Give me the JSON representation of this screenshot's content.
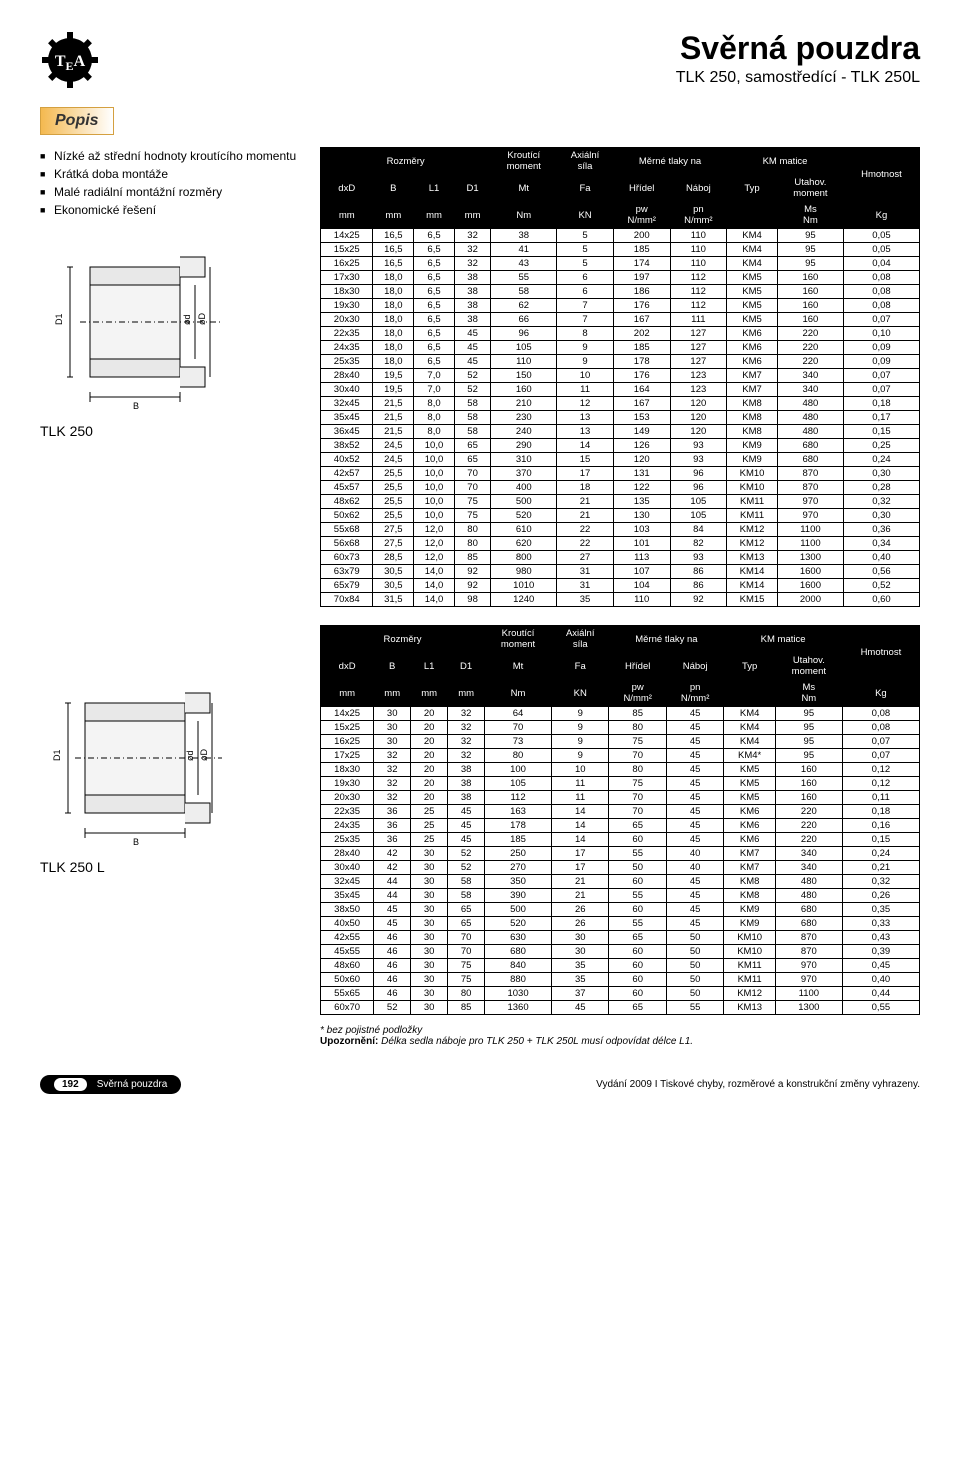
{
  "header": {
    "title": "Svěrná pouzdra",
    "subtitle": "TLK 250, samostředící - TLK 250L"
  },
  "section_title": "Popis",
  "features": [
    "Nízké až střední hodnoty kroutícího momentu",
    "Krátká doba montáže",
    "Malé radiální montážní rozměry",
    "Ekonomické řešení"
  ],
  "labels": {
    "tlk250": "TLK 250",
    "tlk250l": "TLK 250 L"
  },
  "table_headers": {
    "rozmery": "Rozměry",
    "kroutici": "Kroutící moment",
    "axialni": "Axiální síla",
    "merne": "Měrné tlaky na",
    "hridel": "Hřídel",
    "naboj": "Náboj",
    "km": "KM matice",
    "typ": "Typ",
    "utahov": "Utahov. moment",
    "hmotnost": "Hmotnost",
    "dxD": "dxD",
    "B": "B",
    "L1": "L1",
    "D1": "D1",
    "Mt": "Mt",
    "Fa": "Fa",
    "pw": "pw",
    "pn": "pn",
    "Ms": "Ms",
    "mm": "mm",
    "Nm": "Nm",
    "KN": "KN",
    "Nmm2": "N/mm²",
    "Kg": "Kg"
  },
  "table1": [
    [
      "14x25",
      "16,5",
      "6,5",
      "32",
      "38",
      "5",
      "200",
      "110",
      "KM4",
      "95",
      "0,05"
    ],
    [
      "15x25",
      "16,5",
      "6,5",
      "32",
      "41",
      "5",
      "185",
      "110",
      "KM4",
      "95",
      "0,05"
    ],
    [
      "16x25",
      "16,5",
      "6,5",
      "32",
      "43",
      "5",
      "174",
      "110",
      "KM4",
      "95",
      "0,04"
    ],
    [
      "17x30",
      "18,0",
      "6,5",
      "38",
      "55",
      "6",
      "197",
      "112",
      "KM5",
      "160",
      "0,08"
    ],
    [
      "18x30",
      "18,0",
      "6,5",
      "38",
      "58",
      "6",
      "186",
      "112",
      "KM5",
      "160",
      "0,08"
    ],
    [
      "19x30",
      "18,0",
      "6,5",
      "38",
      "62",
      "7",
      "176",
      "112",
      "KM5",
      "160",
      "0,08"
    ],
    [
      "20x30",
      "18,0",
      "6,5",
      "38",
      "66",
      "7",
      "167",
      "111",
      "KM5",
      "160",
      "0,07"
    ],
    [
      "22x35",
      "18,0",
      "6,5",
      "45",
      "96",
      "8",
      "202",
      "127",
      "KM6",
      "220",
      "0,10"
    ],
    [
      "24x35",
      "18,0",
      "6,5",
      "45",
      "105",
      "9",
      "185",
      "127",
      "KM6",
      "220",
      "0,09"
    ],
    [
      "25x35",
      "18,0",
      "6,5",
      "45",
      "110",
      "9",
      "178",
      "127",
      "KM6",
      "220",
      "0,09"
    ],
    [
      "28x40",
      "19,5",
      "7,0",
      "52",
      "150",
      "10",
      "176",
      "123",
      "KM7",
      "340",
      "0,07"
    ],
    [
      "30x40",
      "19,5",
      "7,0",
      "52",
      "160",
      "11",
      "164",
      "123",
      "KM7",
      "340",
      "0,07"
    ],
    [
      "32x45",
      "21,5",
      "8,0",
      "58",
      "210",
      "12",
      "167",
      "120",
      "KM8",
      "480",
      "0,18"
    ],
    [
      "35x45",
      "21,5",
      "8,0",
      "58",
      "230",
      "13",
      "153",
      "120",
      "KM8",
      "480",
      "0,17"
    ],
    [
      "36x45",
      "21,5",
      "8,0",
      "58",
      "240",
      "13",
      "149",
      "120",
      "KM8",
      "480",
      "0,15"
    ],
    [
      "38x52",
      "24,5",
      "10,0",
      "65",
      "290",
      "14",
      "126",
      "93",
      "KM9",
      "680",
      "0,25"
    ],
    [
      "40x52",
      "24,5",
      "10,0",
      "65",
      "310",
      "15",
      "120",
      "93",
      "KM9",
      "680",
      "0,24"
    ],
    [
      "42x57",
      "25,5",
      "10,0",
      "70",
      "370",
      "17",
      "131",
      "96",
      "KM10",
      "870",
      "0,30"
    ],
    [
      "45x57",
      "25,5",
      "10,0",
      "70",
      "400",
      "18",
      "122",
      "96",
      "KM10",
      "870",
      "0,28"
    ],
    [
      "48x62",
      "25,5",
      "10,0",
      "75",
      "500",
      "21",
      "135",
      "105",
      "KM11",
      "970",
      "0,32"
    ],
    [
      "50x62",
      "25,5",
      "10,0",
      "75",
      "520",
      "21",
      "130",
      "105",
      "KM11",
      "970",
      "0,30"
    ],
    [
      "55x68",
      "27,5",
      "12,0",
      "80",
      "610",
      "22",
      "103",
      "84",
      "KM12",
      "1100",
      "0,36"
    ],
    [
      "56x68",
      "27,5",
      "12,0",
      "80",
      "620",
      "22",
      "101",
      "82",
      "KM12",
      "1100",
      "0,34"
    ],
    [
      "60x73",
      "28,5",
      "12,0",
      "85",
      "800",
      "27",
      "113",
      "93",
      "KM13",
      "1300",
      "0,40"
    ],
    [
      "63x79",
      "30,5",
      "14,0",
      "92",
      "980",
      "31",
      "107",
      "86",
      "KM14",
      "1600",
      "0,56"
    ],
    [
      "65x79",
      "30,5",
      "14,0",
      "92",
      "1010",
      "31",
      "104",
      "86",
      "KM14",
      "1600",
      "0,52"
    ],
    [
      "70x84",
      "31,5",
      "14,0",
      "98",
      "1240",
      "35",
      "110",
      "92",
      "KM15",
      "2000",
      "0,60"
    ]
  ],
  "table2": [
    [
      "14x25",
      "30",
      "20",
      "32",
      "64",
      "9",
      "85",
      "45",
      "KM4",
      "95",
      "0,08"
    ],
    [
      "15x25",
      "30",
      "20",
      "32",
      "70",
      "9",
      "80",
      "45",
      "KM4",
      "95",
      "0,08"
    ],
    [
      "16x25",
      "30",
      "20",
      "32",
      "73",
      "9",
      "75",
      "45",
      "KM4",
      "95",
      "0,07"
    ],
    [
      "17x25",
      "32",
      "20",
      "32",
      "80",
      "9",
      "70",
      "45",
      "KM4*",
      "95",
      "0,07"
    ],
    [
      "18x30",
      "32",
      "20",
      "38",
      "100",
      "10",
      "80",
      "45",
      "KM5",
      "160",
      "0,12"
    ],
    [
      "19x30",
      "32",
      "20",
      "38",
      "105",
      "11",
      "75",
      "45",
      "KM5",
      "160",
      "0,12"
    ],
    [
      "20x30",
      "32",
      "20",
      "38",
      "112",
      "11",
      "70",
      "45",
      "KM5",
      "160",
      "0,11"
    ],
    [
      "22x35",
      "36",
      "25",
      "45",
      "163",
      "14",
      "70",
      "45",
      "KM6",
      "220",
      "0,18"
    ],
    [
      "24x35",
      "36",
      "25",
      "45",
      "178",
      "14",
      "65",
      "45",
      "KM6",
      "220",
      "0,16"
    ],
    [
      "25x35",
      "36",
      "25",
      "45",
      "185",
      "14",
      "60",
      "45",
      "KM6",
      "220",
      "0,15"
    ],
    [
      "28x40",
      "42",
      "30",
      "52",
      "250",
      "17",
      "55",
      "40",
      "KM7",
      "340",
      "0,24"
    ],
    [
      "30x40",
      "42",
      "30",
      "52",
      "270",
      "17",
      "50",
      "40",
      "KM7",
      "340",
      "0,21"
    ],
    [
      "32x45",
      "44",
      "30",
      "58",
      "350",
      "21",
      "60",
      "45",
      "KM8",
      "480",
      "0,32"
    ],
    [
      "35x45",
      "44",
      "30",
      "58",
      "390",
      "21",
      "55",
      "45",
      "KM8",
      "480",
      "0,26"
    ],
    [
      "38x50",
      "45",
      "30",
      "65",
      "500",
      "26",
      "60",
      "45",
      "KM9",
      "680",
      "0,35"
    ],
    [
      "40x50",
      "45",
      "30",
      "65",
      "520",
      "26",
      "55",
      "45",
      "KM9",
      "680",
      "0,33"
    ],
    [
      "42x55",
      "46",
      "30",
      "70",
      "630",
      "30",
      "65",
      "50",
      "KM10",
      "870",
      "0,43"
    ],
    [
      "45x55",
      "46",
      "30",
      "70",
      "680",
      "30",
      "60",
      "50",
      "KM10",
      "870",
      "0,39"
    ],
    [
      "48x60",
      "46",
      "30",
      "75",
      "840",
      "35",
      "60",
      "50",
      "KM11",
      "970",
      "0,45"
    ],
    [
      "50x60",
      "46",
      "30",
      "75",
      "880",
      "35",
      "60",
      "50",
      "KM11",
      "970",
      "0,40"
    ],
    [
      "55x65",
      "46",
      "30",
      "80",
      "1030",
      "37",
      "60",
      "50",
      "KM12",
      "1100",
      "0,44"
    ],
    [
      "60x70",
      "52",
      "30",
      "85",
      "1360",
      "45",
      "65",
      "55",
      "KM13",
      "1300",
      "0,55"
    ]
  ],
  "footnote": {
    "line1": "* bez pojistné podložky",
    "line2_bold": "Upozornění:",
    "line2_rest": " Délka sedla náboje pro TLK 250 + TLK 250L musí odpovídat délce L1."
  },
  "footer": {
    "page": "192",
    "section": "Svěrná pouzdra",
    "right": "Vydání 2009   I   Tiskové chyby, rozměrové a konstrukční změny vyhrazeny."
  }
}
